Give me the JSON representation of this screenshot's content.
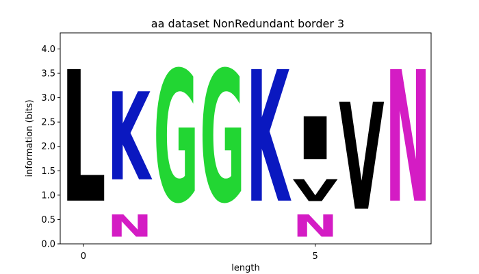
{
  "chart_data": {
    "type": "sequence-logo",
    "title": "aa dataset NonRedundant border 3",
    "xlabel": "length",
    "ylabel": "information (bits)",
    "xlim": [
      -0.5,
      7.5
    ],
    "ylim": [
      0,
      4.33
    ],
    "xticks": [
      0,
      5
    ],
    "yticks": [
      0.0,
      0.5,
      1.0,
      1.5,
      2.0,
      2.5,
      3.0,
      3.5,
      4.0
    ],
    "ytick_labels": [
      "0.0",
      "0.5",
      "1.0",
      "1.5",
      "2.0",
      "2.5",
      "3.0",
      "3.5",
      "4.0"
    ],
    "grid": false,
    "colors": {
      "L": "#000000",
      "K": "#0a18c0",
      "N": "#d41cc4",
      "G": "#22d633",
      "V": "#000000",
      "I": "#000000"
    },
    "positions": [
      {
        "x": 0,
        "letters": [
          {
            "letter": "L",
            "bits": 4.33
          }
        ]
      },
      {
        "x": 1,
        "letters": [
          {
            "letter": "N",
            "bits": 0.73
          },
          {
            "letter": "K",
            "bits": 2.9
          }
        ]
      },
      {
        "x": 2,
        "letters": [
          {
            "letter": "G",
            "bits": 4.33
          }
        ]
      },
      {
        "x": 3,
        "letters": [
          {
            "letter": "G",
            "bits": 4.33
          }
        ]
      },
      {
        "x": 4,
        "letters": [
          {
            "letter": "K",
            "bits": 4.33
          }
        ]
      },
      {
        "x": 5,
        "letters": [
          {
            "letter": "N",
            "bits": 0.73
          },
          {
            "letter": "V",
            "bits": 0.72
          },
          {
            "letter": "I",
            "bits": 1.41
          }
        ]
      },
      {
        "x": 6,
        "letters": [
          {
            "letter": "V",
            "bits": 3.52
          }
        ]
      },
      {
        "x": 7,
        "letters": [
          {
            "letter": "N",
            "bits": 4.33
          }
        ]
      }
    ]
  }
}
